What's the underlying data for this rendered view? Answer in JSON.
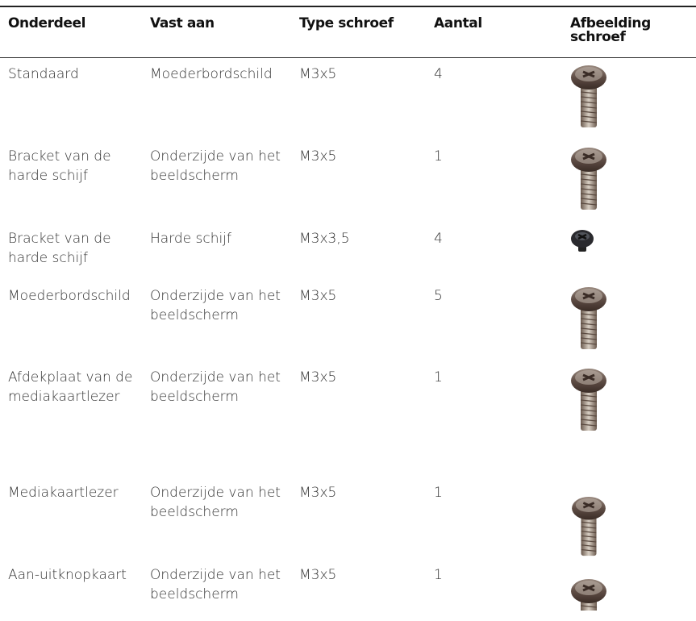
{
  "table": {
    "header": [
      "Onderdeel",
      "Vast aan",
      "Type schroef",
      "Aantal",
      "Afbeelding schroef"
    ],
    "rows": [
      [
        "Standaard",
        "Moederbordschild",
        "M3x5",
        "4"
      ],
      [
        "Bracket van de harde schijf",
        "Onderzijde van het beeldscherm",
        "M3x5",
        "1"
      ],
      [
        "Bracket van de harde schijf",
        "Harde schijf",
        "M3x3,5",
        "4"
      ],
      [
        "Moederbordschild",
        "Onderzijde van het beeldscherm",
        "M3x5",
        "5"
      ],
      [
        "Afdekplaat van de mediakaartlezer",
        "Onderzijde van het beeldscherm",
        "M3x5",
        "1"
      ],
      [
        "Mediakaartlezer",
        "Onderzijde van het beeldscherm",
        "M3x5",
        "1"
      ],
      [
        "Aan-uitknopkaart",
        "Onderzijde van het beeldscherm",
        "M3x5",
        "1"
      ]
    ]
  }
}
